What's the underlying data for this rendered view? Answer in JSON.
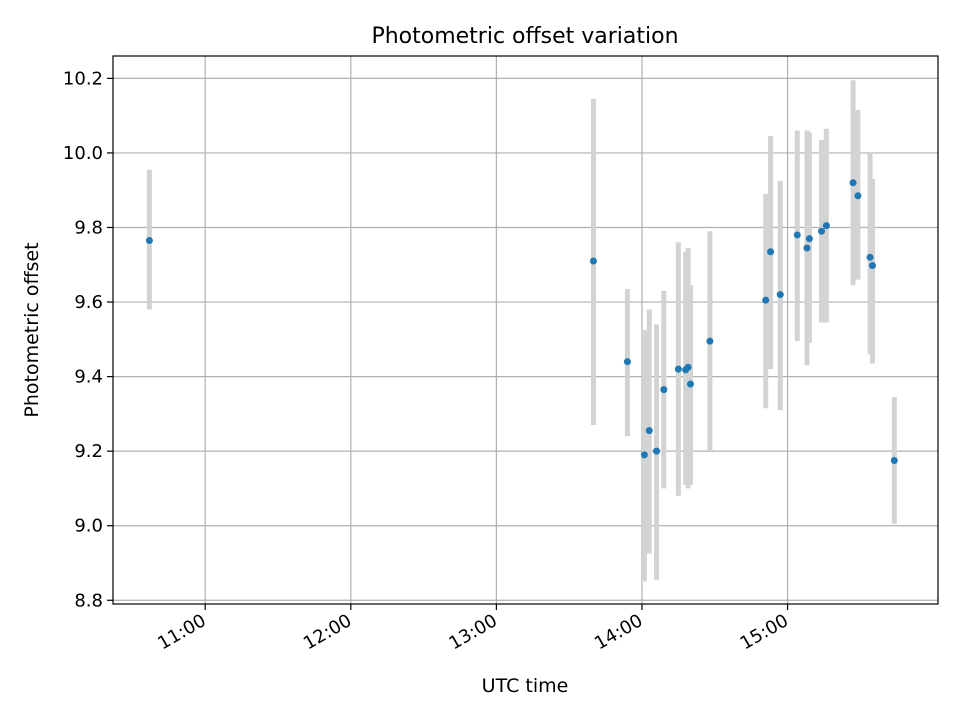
{
  "chart_data": {
    "type": "scatter",
    "title": "Photometric offset variation",
    "xlabel": "UTC time",
    "ylabel": "Photometric offset",
    "x_ticks": [
      "11:00",
      "12:00",
      "13:00",
      "14:00",
      "15:00"
    ],
    "y_ticks": [
      "8.8",
      "9.0",
      "9.2",
      "9.4",
      "9.6",
      "9.8",
      "10.0",
      "10.2"
    ],
    "xlim": [
      "10:22",
      "16:02"
    ],
    "ylim": [
      8.79,
      10.26
    ],
    "grid": true,
    "colors": {
      "point": "#1f77b4",
      "errorbar": "#d3d3d3",
      "grid": "#b0b0b0"
    },
    "points": [
      {
        "t": "10:37",
        "y": 9.765,
        "ylo": 9.58,
        "yhi": 9.955
      },
      {
        "t": "13:40",
        "y": 9.71,
        "ylo": 9.27,
        "yhi": 10.145
      },
      {
        "t": "13:54",
        "y": 9.44,
        "ylo": 9.24,
        "yhi": 9.635
      },
      {
        "t": "14:01",
        "y": 9.19,
        "ylo": 8.85,
        "yhi": 9.525
      },
      {
        "t": "14:03",
        "y": 9.255,
        "ylo": 8.925,
        "yhi": 9.58
      },
      {
        "t": "14:06",
        "y": 9.2,
        "ylo": 8.855,
        "yhi": 9.54
      },
      {
        "t": "14:09",
        "y": 9.365,
        "ylo": 9.1,
        "yhi": 9.63
      },
      {
        "t": "14:15",
        "y": 9.42,
        "ylo": 9.08,
        "yhi": 9.76
      },
      {
        "t": "14:18",
        "y": 9.418,
        "ylo": 9.11,
        "yhi": 9.735
      },
      {
        "t": "14:19",
        "y": 9.425,
        "ylo": 9.1,
        "yhi": 9.745
      },
      {
        "t": "14:20",
        "y": 9.38,
        "ylo": 9.11,
        "yhi": 9.645
      },
      {
        "t": "14:28",
        "y": 9.495,
        "ylo": 9.2,
        "yhi": 9.79
      },
      {
        "t": "14:51",
        "y": 9.605,
        "ylo": 9.315,
        "yhi": 9.89
      },
      {
        "t": "14:53",
        "y": 9.735,
        "ylo": 9.42,
        "yhi": 10.045
      },
      {
        "t": "14:57",
        "y": 9.62,
        "ylo": 9.31,
        "yhi": 9.925
      },
      {
        "t": "15:04",
        "y": 9.78,
        "ylo": 9.495,
        "yhi": 10.06
      },
      {
        "t": "15:08",
        "y": 9.745,
        "ylo": 9.43,
        "yhi": 10.06
      },
      {
        "t": "15:09",
        "y": 9.77,
        "ylo": 9.49,
        "yhi": 10.055
      },
      {
        "t": "15:14",
        "y": 9.79,
        "ylo": 9.545,
        "yhi": 10.035
      },
      {
        "t": "15:16",
        "y": 9.805,
        "ylo": 9.545,
        "yhi": 10.065
      },
      {
        "t": "15:27",
        "y": 9.92,
        "ylo": 9.645,
        "yhi": 10.195
      },
      {
        "t": "15:29",
        "y": 9.885,
        "ylo": 9.66,
        "yhi": 10.115
      },
      {
        "t": "15:34",
        "y": 9.72,
        "ylo": 9.46,
        "yhi": 10.0
      },
      {
        "t": "15:35",
        "y": 9.698,
        "ylo": 9.435,
        "yhi": 9.93
      },
      {
        "t": "15:44",
        "y": 9.175,
        "ylo": 9.005,
        "yhi": 9.345
      }
    ]
  }
}
